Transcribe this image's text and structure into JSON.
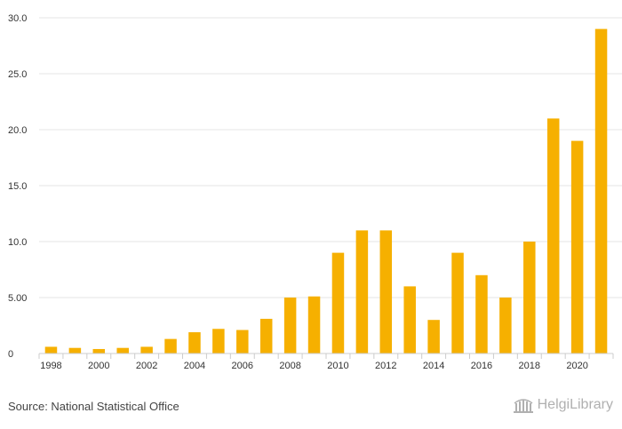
{
  "chart_data": {
    "type": "bar",
    "title": "",
    "xlabel": "",
    "ylabel": "",
    "categories": [
      "1998",
      "1999",
      "2000",
      "2001",
      "2002",
      "2003",
      "2004",
      "2005",
      "2006",
      "2007",
      "2008",
      "2009",
      "2010",
      "2011",
      "2012",
      "2013",
      "2014",
      "2015",
      "2016",
      "2017",
      "2018",
      "2019",
      "2020",
      "2021"
    ],
    "values": [
      0.6,
      0.5,
      0.4,
      0.5,
      0.6,
      1.3,
      1.9,
      2.2,
      2.1,
      3.1,
      5.0,
      5.1,
      9.0,
      11.0,
      11.0,
      6.0,
      3.0,
      9.0,
      7.0,
      5.0,
      10.0,
      21.0,
      19.0,
      29.0
    ],
    "ylim": [
      0,
      30
    ],
    "yticks": [
      0,
      5,
      10,
      15,
      20,
      25,
      30
    ],
    "ytick_labels": [
      "0",
      "5.00",
      "10.0",
      "15.0",
      "20.0",
      "25.0",
      "30.0"
    ],
    "xtick_labels": [
      "1998",
      "2000",
      "2002",
      "2004",
      "2006",
      "2008",
      "2010",
      "2012",
      "2014",
      "2016",
      "2018",
      "2020"
    ],
    "bar_color": "#F6B000",
    "grid": true
  },
  "footer": {
    "source": "Source: National Statistical Office",
    "brand": "HelgiLibrary"
  }
}
